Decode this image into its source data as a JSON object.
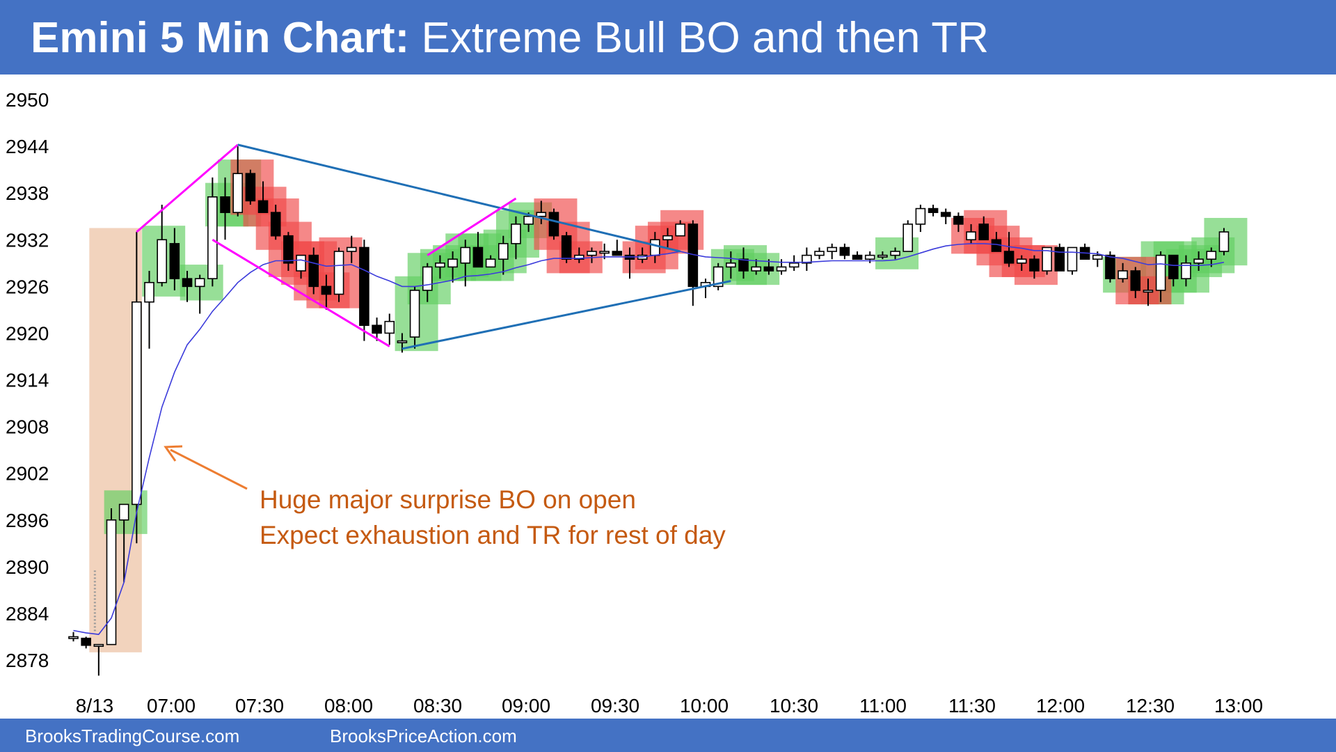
{
  "header": {
    "title_bold": "Emini 5 Min Chart:",
    "title_rest": "Extreme Bull BO and then TR"
  },
  "footer": {
    "left": "BrooksTradingCourse.com",
    "right": "BrooksPriceAction.com"
  },
  "colors": {
    "header_bg": "#4472c4",
    "bull_highlight": "#5fce5f",
    "bear_highlight": "#f04848",
    "breakout_zone": "#f2d3bd",
    "moving_average": "#3b3bdb",
    "trendline_magenta": "#ff00ff",
    "trendline_blue": "#1f6fb5",
    "annotation": "#c55a11"
  },
  "chart_data": {
    "type": "candlestick",
    "title": "Emini 5 Min Chart: Extreme Bull BO and then TR",
    "y_ticks": [
      2950,
      2944,
      2938,
      2932,
      2926,
      2920,
      2914,
      2908,
      2902,
      2896,
      2890,
      2884,
      2878
    ],
    "ylim": [
      2875,
      2952
    ],
    "x_ticks": [
      "8/13",
      "07:00",
      "07:30",
      "08:00",
      "08:30",
      "09:00",
      "09:30",
      "10:00",
      "10:30",
      "11:00",
      "11:30",
      "12:00",
      "12:30",
      "13:00"
    ],
    "annotation": [
      "Huge major surprise BO on open",
      "Expect exhaustion and TR for rest of day"
    ],
    "candles": [
      {
        "o": 2881,
        "h": 2881.6,
        "l": 2880.4,
        "c": 2881
      },
      {
        "o": 2880.8,
        "h": 2881,
        "l": 2879.5,
        "c": 2879.9
      },
      {
        "o": 2879.8,
        "h": 2880,
        "l": 2876,
        "c": 2880
      },
      {
        "o": 2880,
        "h": 2897.5,
        "l": 2880,
        "c": 2896
      },
      {
        "o": 2896,
        "h": 2898,
        "l": 2888,
        "c": 2898
      },
      {
        "o": 2898,
        "h": 2933,
        "l": 2893,
        "c": 2924
      },
      {
        "o": 2924,
        "h": 2928,
        "l": 2918,
        "c": 2926.5
      },
      {
        "o": 2926.5,
        "h": 2936.5,
        "l": 2926,
        "c": 2932
      },
      {
        "o": 2931.5,
        "h": 2933.5,
        "l": 2925.5,
        "c": 2927
      },
      {
        "o": 2927,
        "h": 2928,
        "l": 2924,
        "c": 2926
      },
      {
        "o": 2926,
        "h": 2927.5,
        "l": 2922.5,
        "c": 2927
      },
      {
        "o": 2927,
        "h": 2940,
        "l": 2926,
        "c": 2937.5
      },
      {
        "o": 2937.5,
        "h": 2940,
        "l": 2932,
        "c": 2935.5
      },
      {
        "o": 2935.5,
        "h": 2944,
        "l": 2935,
        "c": 2940.5
      },
      {
        "o": 2940.5,
        "h": 2941,
        "l": 2936.5,
        "c": 2937
      },
      {
        "o": 2937,
        "h": 2939.5,
        "l": 2935.5,
        "c": 2935.5
      },
      {
        "o": 2935.5,
        "h": 2936.5,
        "l": 2932,
        "c": 2932.5
      },
      {
        "o": 2932.5,
        "h": 2933,
        "l": 2928,
        "c": 2929
      },
      {
        "o": 2928,
        "h": 2930,
        "l": 2927,
        "c": 2930
      },
      {
        "o": 2930,
        "h": 2931,
        "l": 2925,
        "c": 2926
      },
      {
        "o": 2926,
        "h": 2927.5,
        "l": 2923,
        "c": 2925
      },
      {
        "o": 2925,
        "h": 2931,
        "l": 2924,
        "c": 2930.5
      },
      {
        "o": 2930.5,
        "h": 2932.5,
        "l": 2929,
        "c": 2931
      },
      {
        "o": 2931,
        "h": 2932,
        "l": 2919,
        "c": 2921
      },
      {
        "o": 2921,
        "h": 2922,
        "l": 2919,
        "c": 2920
      },
      {
        "o": 2920,
        "h": 2922.5,
        "l": 2918.5,
        "c": 2921.5
      },
      {
        "o": 2919,
        "h": 2920,
        "l": 2917.5,
        "c": 2919
      },
      {
        "o": 2919.5,
        "h": 2926,
        "l": 2918,
        "c": 2925.5
      },
      {
        "o": 2925.5,
        "h": 2929,
        "l": 2924,
        "c": 2928.5
      },
      {
        "o": 2928.5,
        "h": 2930,
        "l": 2927,
        "c": 2929
      },
      {
        "o": 2928.5,
        "h": 2930.5,
        "l": 2926.5,
        "c": 2929.5
      },
      {
        "o": 2929,
        "h": 2932,
        "l": 2926,
        "c": 2931
      },
      {
        "o": 2931,
        "h": 2933,
        "l": 2928.5,
        "c": 2928.5
      },
      {
        "o": 2928.5,
        "h": 2930,
        "l": 2928.5,
        "c": 2929.5
      },
      {
        "o": 2929.5,
        "h": 2932.5,
        "l": 2927.5,
        "c": 2931.5
      },
      {
        "o": 2931.5,
        "h": 2935,
        "l": 2929.5,
        "c": 2934
      },
      {
        "o": 2934,
        "h": 2935.5,
        "l": 2933,
        "c": 2935
      },
      {
        "o": 2935,
        "h": 2937,
        "l": 2934,
        "c": 2935.5
      },
      {
        "o": 2935.5,
        "h": 2936,
        "l": 2932,
        "c": 2932.5
      },
      {
        "o": 2932.5,
        "h": 2933,
        "l": 2929,
        "c": 2929.5
      },
      {
        "o": 2929.5,
        "h": 2931,
        "l": 2929,
        "c": 2930
      },
      {
        "o": 2930,
        "h": 2931,
        "l": 2929,
        "c": 2930.5
      },
      {
        "o": 2930.5,
        "h": 2931.5,
        "l": 2929.5,
        "c": 2930.5
      },
      {
        "o": 2930.5,
        "h": 2932,
        "l": 2930,
        "c": 2930
      },
      {
        "o": 2930,
        "h": 2931,
        "l": 2927,
        "c": 2929.5
      },
      {
        "o": 2929.5,
        "h": 2931,
        "l": 2929,
        "c": 2930
      },
      {
        "o": 2930,
        "h": 2933,
        "l": 2929,
        "c": 2932
      },
      {
        "o": 2932,
        "h": 2933.5,
        "l": 2931,
        "c": 2932.5
      },
      {
        "o": 2932.5,
        "h": 2934.5,
        "l": 2932.5,
        "c": 2934
      },
      {
        "o": 2934,
        "h": 2934.5,
        "l": 2923.5,
        "c": 2926
      },
      {
        "o": 2926,
        "h": 2927,
        "l": 2924.5,
        "c": 2926.5
      },
      {
        "o": 2926,
        "h": 2929,
        "l": 2925.5,
        "c": 2928.5
      },
      {
        "o": 2928.5,
        "h": 2930.5,
        "l": 2927,
        "c": 2929
      },
      {
        "o": 2929.5,
        "h": 2931,
        "l": 2927,
        "c": 2928
      },
      {
        "o": 2928,
        "h": 2929.5,
        "l": 2927.5,
        "c": 2928.5
      },
      {
        "o": 2928.5,
        "h": 2929.5,
        "l": 2927.5,
        "c": 2928
      },
      {
        "o": 2928,
        "h": 2929.5,
        "l": 2927.5,
        "c": 2928.5
      },
      {
        "o": 2928.5,
        "h": 2930,
        "l": 2928,
        "c": 2929
      },
      {
        "o": 2929,
        "h": 2931,
        "l": 2928,
        "c": 2930
      },
      {
        "o": 2930,
        "h": 2931,
        "l": 2929.5,
        "c": 2930.5
      },
      {
        "o": 2930.5,
        "h": 2931.5,
        "l": 2929.5,
        "c": 2931
      },
      {
        "o": 2931,
        "h": 2931.5,
        "l": 2929.5,
        "c": 2930
      },
      {
        "o": 2930,
        "h": 2930.5,
        "l": 2929.5,
        "c": 2929.5
      },
      {
        "o": 2929.5,
        "h": 2930.5,
        "l": 2929,
        "c": 2930
      },
      {
        "o": 2930,
        "h": 2930.5,
        "l": 2929.5,
        "c": 2930
      },
      {
        "o": 2930,
        "h": 2931,
        "l": 2929.5,
        "c": 2930.5
      },
      {
        "o": 2930.5,
        "h": 2934.5,
        "l": 2930.5,
        "c": 2934
      },
      {
        "o": 2934,
        "h": 2936.5,
        "l": 2933,
        "c": 2936
      },
      {
        "o": 2936,
        "h": 2936.5,
        "l": 2935,
        "c": 2935.5
      },
      {
        "o": 2935.5,
        "h": 2936,
        "l": 2934,
        "c": 2935
      },
      {
        "o": 2935,
        "h": 2935.5,
        "l": 2933,
        "c": 2934
      },
      {
        "o": 2932,
        "h": 2934,
        "l": 2931.5,
        "c": 2933
      },
      {
        "o": 2934,
        "h": 2935,
        "l": 2932,
        "c": 2932
      },
      {
        "o": 2932,
        "h": 2933,
        "l": 2930.5,
        "c": 2930.5
      },
      {
        "o": 2930.5,
        "h": 2933,
        "l": 2928.5,
        "c": 2929
      },
      {
        "o": 2929,
        "h": 2930,
        "l": 2928,
        "c": 2929.5
      },
      {
        "o": 2929.5,
        "h": 2930,
        "l": 2927,
        "c": 2928
      },
      {
        "o": 2928,
        "h": 2931,
        "l": 2927.5,
        "c": 2931
      },
      {
        "o": 2931,
        "h": 2931.5,
        "l": 2928,
        "c": 2928
      },
      {
        "o": 2928,
        "h": 2931,
        "l": 2927.5,
        "c": 2931
      },
      {
        "o": 2931,
        "h": 2931.5,
        "l": 2929.5,
        "c": 2929.5
      },
      {
        "o": 2929.5,
        "h": 2930.5,
        "l": 2928.5,
        "c": 2930
      },
      {
        "o": 2930,
        "h": 2930.5,
        "l": 2926.5,
        "c": 2927
      },
      {
        "o": 2927,
        "h": 2929,
        "l": 2926.5,
        "c": 2928
      },
      {
        "o": 2928,
        "h": 2928.5,
        "l": 2924.5,
        "c": 2925.5
      },
      {
        "o": 2925.5,
        "h": 2927,
        "l": 2923.5,
        "c": 2925.5
      },
      {
        "o": 2925.5,
        "h": 2930.5,
        "l": 2924,
        "c": 2930
      },
      {
        "o": 2930,
        "h": 2930,
        "l": 2926,
        "c": 2927
      },
      {
        "o": 2927,
        "h": 2930,
        "l": 2926,
        "c": 2929
      },
      {
        "o": 2929,
        "h": 2930.5,
        "l": 2928,
        "c": 2929.5
      },
      {
        "o": 2929.5,
        "h": 2931,
        "l": 2928.5,
        "c": 2930.5
      },
      {
        "o": 2930.5,
        "h": 2933.5,
        "l": 2930,
        "c": 2933
      }
    ],
    "moving_average": [
      2881.8,
      2881.5,
      2881.3,
      2883.4,
      2888,
      2897,
      2904,
      2910.5,
      2915,
      2918.5,
      2920.5,
      2922.8,
      2924.6,
      2926.5,
      2927.8,
      2928.8,
      2929.3,
      2929.3,
      2929.4,
      2929,
      2928.6,
      2928.7,
      2928.8,
      2928.1,
      2927.3,
      2926.7,
      2926,
      2926,
      2926.2,
      2926.5,
      2926.8,
      2927.3,
      2927.4,
      2927.6,
      2927.9,
      2928.4,
      2928.8,
      2929.3,
      2929.6,
      2929.6,
      2929.6,
      2929.7,
      2929.8,
      2929.8,
      2929.8,
      2929.8,
      2930,
      2930.2,
      2930.5,
      2930.1,
      2929.8,
      2929.7,
      2929.6,
      2929.4,
      2929.3,
      2929.2,
      2929.1,
      2929.1,
      2929.1,
      2929.2,
      2929.3,
      2929.3,
      2929.3,
      2929.3,
      2929.3,
      2929.4,
      2929.8,
      2930.3,
      2930.8,
      2931.2,
      2931.4,
      2931.5,
      2931.5,
      2931.4,
      2931.1,
      2930.9,
      2930.6,
      2930.6,
      2930.4,
      2930.4,
      2930.3,
      2930.2,
      2929.8,
      2929.6,
      2929.2,
      2928.8,
      2928.9,
      2928.7,
      2928.7,
      2928.7,
      2928.8,
      2929.1
    ]
  }
}
